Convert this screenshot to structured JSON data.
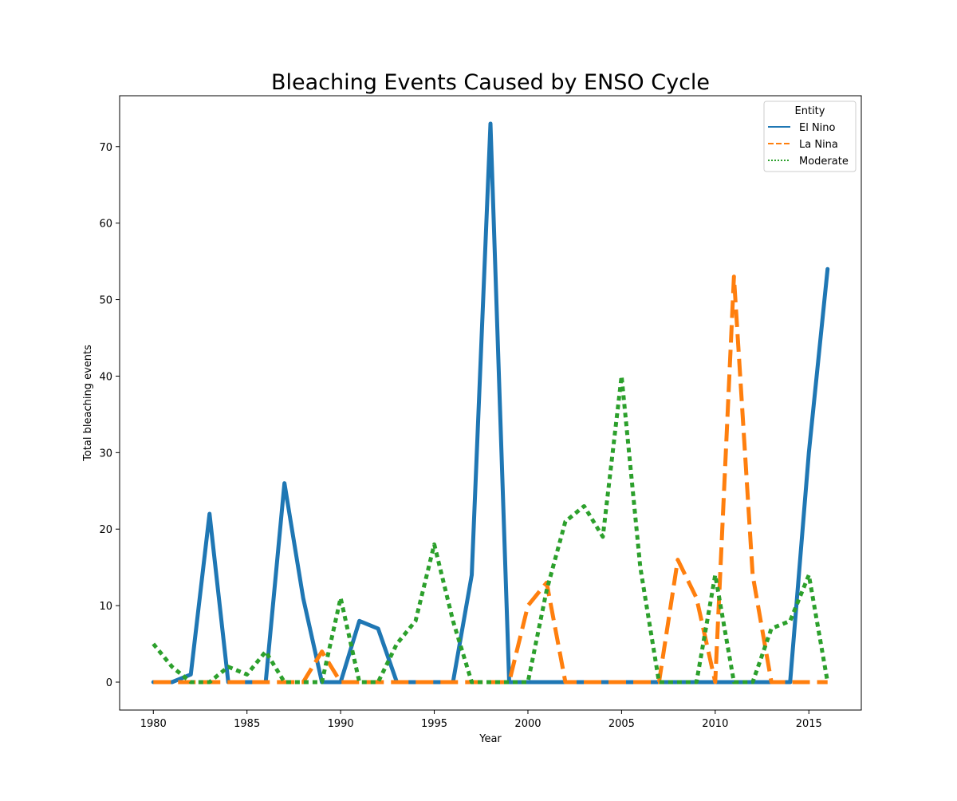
{
  "chart_data": {
    "type": "line",
    "title": "Bleaching Events Caused by ENSO Cycle",
    "xlabel": "Year",
    "ylabel": "Total bleaching events",
    "xlim": [
      1978.2,
      2017.8
    ],
    "ylim": [
      -3.65,
      76.65
    ],
    "xticks": [
      1980,
      1985,
      1990,
      1995,
      2000,
      2005,
      2010,
      2015
    ],
    "yticks": [
      0,
      10,
      20,
      30,
      40,
      50,
      60,
      70
    ],
    "grid": false,
    "legend": {
      "title": "Entity",
      "placement": "top-right"
    },
    "x": [
      1980,
      1981,
      1982,
      1983,
      1984,
      1985,
      1986,
      1987,
      1988,
      1989,
      1990,
      1991,
      1992,
      1993,
      1994,
      1995,
      1996,
      1997,
      1998,
      1999,
      2000,
      2001,
      2002,
      2003,
      2004,
      2005,
      2006,
      2007,
      2008,
      2009,
      2010,
      2011,
      2012,
      2013,
      2014,
      2015,
      2016
    ],
    "series": [
      {
        "name": "El Nino",
        "color": "#1f77b4",
        "style": "solid",
        "values": [
          0,
          0,
          1,
          22,
          0,
          0,
          0,
          26,
          11,
          0,
          0,
          8,
          7,
          0,
          0,
          0,
          0,
          14,
          73,
          0,
          0,
          0,
          0,
          0,
          0,
          0,
          0,
          0,
          0,
          0,
          0,
          0,
          0,
          0,
          0,
          30,
          54
        ]
      },
      {
        "name": "La Nina",
        "color": "#ff7f0e",
        "style": "dashed",
        "values": [
          0,
          0,
          0,
          0,
          0,
          0,
          0,
          0,
          0,
          4,
          0,
          0,
          0,
          0,
          0,
          0,
          0,
          0,
          0,
          0,
          10,
          13,
          0,
          0,
          0,
          0,
          0,
          0,
          16,
          11,
          0,
          53,
          14,
          0,
          0,
          0,
          0
        ]
      },
      {
        "name": "Moderate",
        "color": "#2ca02c",
        "style": "dotted",
        "values": [
          5,
          2,
          0,
          0,
          2,
          1,
          4,
          0,
          0,
          0,
          11,
          0,
          0,
          5,
          8,
          18,
          8,
          0,
          0,
          0,
          0,
          12,
          21,
          23,
          19,
          40,
          15,
          0,
          0,
          0,
          14,
          0,
          0,
          7,
          8,
          14,
          0
        ]
      }
    ]
  }
}
